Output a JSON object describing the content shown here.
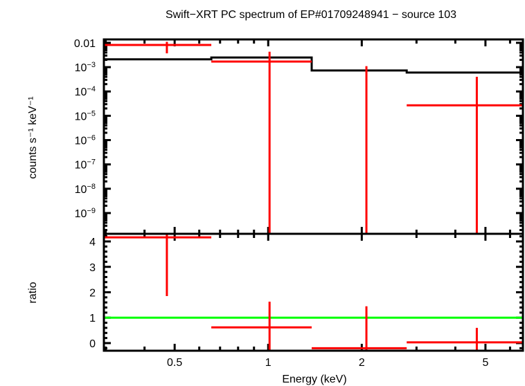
{
  "chart_data": [
    {
      "panel": "spectrum",
      "type": "scatter",
      "title": "Swift−XRT PC spectrum of EP#01709248941 − source 103",
      "xlabel": "Energy (keV)",
      "ylabel": "counts s⁻¹ keV⁻¹",
      "xscale": "log",
      "yscale": "log",
      "xlim": [
        0.296,
        6.6
      ],
      "ylim": [
        1.4e-10,
        0.0138
      ],
      "y_tick_labels": [
        {
          "value": 0.01,
          "base": "0.01",
          "exp": ""
        },
        {
          "value": 0.001,
          "base": "10",
          "exp": "−3"
        },
        {
          "value": 0.0001,
          "base": "10",
          "exp": "−4"
        },
        {
          "value": 1e-05,
          "base": "10",
          "exp": "−5"
        },
        {
          "value": 1e-06,
          "base": "10",
          "exp": "−6"
        },
        {
          "value": 1e-07,
          "base": "10",
          "exp": "−7"
        },
        {
          "value": 1e-08,
          "base": "10",
          "exp": "−8"
        },
        {
          "value": 1e-09,
          "base": "10",
          "exp": "−9"
        }
      ],
      "data_series": {
        "name": "data",
        "color": "#ff0000",
        "points": [
          {
            "x": 0.472,
            "xlo": 0.296,
            "xhi": 0.656,
            "y": 0.0082,
            "ylo": 0.0037,
            "yhi": 0.011
          },
          {
            "x": 1.01,
            "xlo": 0.656,
            "xhi": 1.38,
            "y": 0.0017,
            "ylo": 1e-11,
            "yhi": 0.0043
          },
          {
            "x": 2.07,
            "xlo": 1.38,
            "xhi": 2.79,
            "y": 1e-11,
            "ylo": 1e-11,
            "yhi": 0.0011
          },
          {
            "x": 4.69,
            "xlo": 2.79,
            "xhi": 6.6,
            "y": 2.7e-05,
            "ylo": 1e-11,
            "yhi": 0.0004
          }
        ]
      },
      "model_series": {
        "name": "model",
        "color": "#000000",
        "bins": [
          {
            "xlo": 0.296,
            "xhi": 0.656,
            "y": 0.0021
          },
          {
            "xlo": 0.656,
            "xhi": 1.38,
            "y": 0.0025
          },
          {
            "xlo": 1.38,
            "xhi": 2.79,
            "y": 0.00073
          },
          {
            "xlo": 2.79,
            "xhi": 6.6,
            "y": 0.0006
          }
        ]
      }
    },
    {
      "panel": "ratio",
      "type": "scatter",
      "xlabel": "Energy (keV)",
      "ylabel": "ratio",
      "xscale": "log",
      "xlim": [
        0.296,
        6.6
      ],
      "ylim": [
        -0.3,
        4.3
      ],
      "x_tick_labels": [
        {
          "value": 0.5,
          "label": "0.5"
        },
        {
          "value": 1,
          "label": "1"
        },
        {
          "value": 2,
          "label": "2"
        },
        {
          "value": 5,
          "label": "5"
        }
      ],
      "y_tick_labels": [
        {
          "value": 0,
          "label": "0"
        },
        {
          "value": 1,
          "label": "1"
        },
        {
          "value": 2,
          "label": "2"
        },
        {
          "value": 3,
          "label": "3"
        },
        {
          "value": 4,
          "label": "4"
        }
      ],
      "reference_line": {
        "y": 1,
        "color": "#00ff00"
      },
      "data_series": {
        "name": "ratio",
        "color": "#ff0000",
        "points": [
          {
            "x": 0.472,
            "xlo": 0.296,
            "xhi": 0.656,
            "y": 4.16,
            "ylo": 1.85,
            "yhi": 4.5
          },
          {
            "x": 1.01,
            "xlo": 0.656,
            "xhi": 1.38,
            "y": 0.62,
            "ylo": -0.5,
            "yhi": 1.63
          },
          {
            "x": 2.07,
            "xlo": 1.38,
            "xhi": 2.79,
            "y": -0.2,
            "ylo": -0.5,
            "yhi": 1.45
          },
          {
            "x": 4.69,
            "xlo": 2.79,
            "xhi": 6.6,
            "y": 0.03,
            "ylo": -0.5,
            "yhi": 0.6
          }
        ]
      }
    }
  ]
}
